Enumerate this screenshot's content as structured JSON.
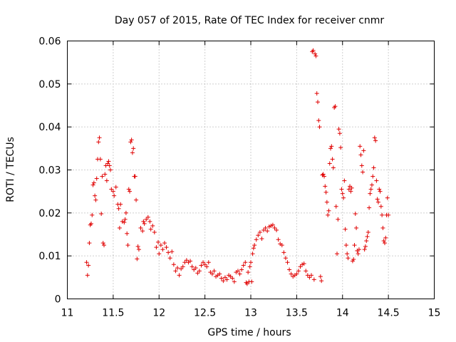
{
  "chart_data": {
    "type": "scatter",
    "title": "Day 057 of 2015, Rate Of TEC Index for receiver cnmr",
    "xlabel": "GPS time / hours",
    "ylabel": "ROTI / TECUs",
    "xlim": [
      11,
      15
    ],
    "ylim": [
      0,
      0.06
    ],
    "xticks": [
      "11",
      "11.5",
      "12",
      "12.5",
      "13",
      "13.5",
      "14",
      "14.5",
      "15"
    ],
    "yticks": [
      "0",
      "0.01",
      "0.02",
      "0.03",
      "0.04",
      "0.05",
      "0.06"
    ],
    "grid": true,
    "marker": "plus",
    "color": "#e00000",
    "series": [
      {
        "name": "ROTI",
        "points": [
          [
            11.21,
            0.0085
          ],
          [
            11.22,
            0.0055
          ],
          [
            11.23,
            0.0078
          ],
          [
            11.24,
            0.013
          ],
          [
            11.25,
            0.0172
          ],
          [
            11.26,
            0.0175
          ],
          [
            11.27,
            0.0195
          ],
          [
            11.28,
            0.0265
          ],
          [
            11.29,
            0.027
          ],
          [
            11.3,
            0.024
          ],
          [
            11.31,
            0.023
          ],
          [
            11.32,
            0.028
          ],
          [
            11.33,
            0.0325
          ],
          [
            11.34,
            0.0365
          ],
          [
            11.35,
            0.0375
          ],
          [
            11.36,
            0.0325
          ],
          [
            11.37,
            0.0198
          ],
          [
            11.38,
            0.0285
          ],
          [
            11.39,
            0.013
          ],
          [
            11.4,
            0.0125
          ],
          [
            11.41,
            0.029
          ],
          [
            11.42,
            0.031
          ],
          [
            11.43,
            0.0275
          ],
          [
            11.44,
            0.0315
          ],
          [
            11.45,
            0.032
          ],
          [
            11.46,
            0.031
          ],
          [
            11.47,
            0.03
          ],
          [
            11.48,
            0.0255
          ],
          [
            11.5,
            0.025
          ],
          [
            11.51,
            0.024
          ],
          [
            11.53,
            0.026
          ],
          [
            11.55,
            0.022
          ],
          [
            11.56,
            0.021
          ],
          [
            11.57,
            0.0165
          ],
          [
            11.58,
            0.022
          ],
          [
            11.6,
            0.018
          ],
          [
            11.62,
            0.0178
          ],
          [
            11.63,
            0.0185
          ],
          [
            11.64,
            0.02
          ],
          [
            11.65,
            0.0152
          ],
          [
            11.66,
            0.0125
          ],
          [
            11.67,
            0.0255
          ],
          [
            11.68,
            0.025
          ],
          [
            11.69,
            0.0365
          ],
          [
            11.7,
            0.037
          ],
          [
            11.71,
            0.034
          ],
          [
            11.72,
            0.035
          ],
          [
            11.73,
            0.0285
          ],
          [
            11.74,
            0.0285
          ],
          [
            11.75,
            0.023
          ],
          [
            11.76,
            0.0093
          ],
          [
            11.77,
            0.0122
          ],
          [
            11.78,
            0.0115
          ],
          [
            11.8,
            0.0165
          ],
          [
            11.82,
            0.0158
          ],
          [
            11.83,
            0.018
          ],
          [
            11.84,
            0.0175
          ],
          [
            11.86,
            0.0185
          ],
          [
            11.88,
            0.019
          ],
          [
            11.9,
            0.018
          ],
          [
            11.91,
            0.0162
          ],
          [
            11.93,
            0.017
          ],
          [
            11.95,
            0.0155
          ],
          [
            11.97,
            0.012
          ],
          [
            11.99,
            0.0132
          ],
          [
            12.0,
            0.0105
          ],
          [
            12.02,
            0.0125
          ],
          [
            12.04,
            0.0115
          ],
          [
            12.06,
            0.013
          ],
          [
            12.08,
            0.012
          ],
          [
            12.1,
            0.0108
          ],
          [
            12.12,
            0.0095
          ],
          [
            12.14,
            0.011
          ],
          [
            12.16,
            0.008
          ],
          [
            12.18,
            0.0065
          ],
          [
            12.2,
            0.0072
          ],
          [
            12.22,
            0.0055
          ],
          [
            12.24,
            0.007
          ],
          [
            12.26,
            0.0075
          ],
          [
            12.28,
            0.0085
          ],
          [
            12.3,
            0.009
          ],
          [
            12.32,
            0.0085
          ],
          [
            12.34,
            0.0088
          ],
          [
            12.36,
            0.0075
          ],
          [
            12.38,
            0.0068
          ],
          [
            12.4,
            0.0072
          ],
          [
            12.42,
            0.006
          ],
          [
            12.44,
            0.0065
          ],
          [
            12.46,
            0.0078
          ],
          [
            12.48,
            0.0085
          ],
          [
            12.5,
            0.008
          ],
          [
            12.52,
            0.0075
          ],
          [
            12.54,
            0.0085
          ],
          [
            12.56,
            0.0062
          ],
          [
            12.58,
            0.0058
          ],
          [
            12.6,
            0.0065
          ],
          [
            12.62,
            0.0052
          ],
          [
            12.64,
            0.0055
          ],
          [
            12.66,
            0.0058
          ],
          [
            12.68,
            0.0048
          ],
          [
            12.7,
            0.0042
          ],
          [
            12.72,
            0.005
          ],
          [
            12.74,
            0.0045
          ],
          [
            12.76,
            0.0055
          ],
          [
            12.78,
            0.0052
          ],
          [
            12.8,
            0.0048
          ],
          [
            12.82,
            0.004
          ],
          [
            12.84,
            0.0062
          ],
          [
            12.86,
            0.0065
          ],
          [
            12.88,
            0.0058
          ],
          [
            12.9,
            0.0068
          ],
          [
            12.92,
            0.0078
          ],
          [
            12.94,
            0.0085
          ],
          [
            12.95,
            0.0038
          ],
          [
            12.96,
            0.0035
          ],
          [
            12.97,
            0.0062
          ],
          [
            12.98,
            0.004
          ],
          [
            12.99,
            0.0075
          ],
          [
            13.0,
            0.0085
          ],
          [
            13.01,
            0.004
          ],
          [
            13.02,
            0.0105
          ],
          [
            13.03,
            0.0118
          ],
          [
            13.04,
            0.0125
          ],
          [
            13.06,
            0.0138
          ],
          [
            13.08,
            0.0148
          ],
          [
            13.1,
            0.0155
          ],
          [
            13.12,
            0.014
          ],
          [
            13.14,
            0.016
          ],
          [
            13.16,
            0.0165
          ],
          [
            13.18,
            0.0158
          ],
          [
            13.2,
            0.0168
          ],
          [
            13.22,
            0.017
          ],
          [
            13.24,
            0.0172
          ],
          [
            13.26,
            0.0165
          ],
          [
            13.28,
            0.016
          ],
          [
            13.3,
            0.0138
          ],
          [
            13.32,
            0.0128
          ],
          [
            13.34,
            0.0125
          ],
          [
            13.36,
            0.0108
          ],
          [
            13.38,
            0.0095
          ],
          [
            13.4,
            0.0085
          ],
          [
            13.42,
            0.0068
          ],
          [
            13.44,
            0.0058
          ],
          [
            13.46,
            0.0052
          ],
          [
            13.48,
            0.0055
          ],
          [
            13.5,
            0.0058
          ],
          [
            13.52,
            0.0065
          ],
          [
            13.54,
            0.0075
          ],
          [
            13.56,
            0.008
          ],
          [
            13.58,
            0.0082
          ],
          [
            13.6,
            0.0065
          ],
          [
            13.62,
            0.0055
          ],
          [
            13.64,
            0.005
          ],
          [
            13.66,
            0.0055
          ],
          [
            13.67,
            0.0575
          ],
          [
            13.68,
            0.0578
          ],
          [
            13.69,
            0.0045
          ],
          [
            13.7,
            0.057
          ],
          [
            13.71,
            0.0565
          ],
          [
            13.72,
            0.0478
          ],
          [
            13.73,
            0.0458
          ],
          [
            13.74,
            0.0415
          ],
          [
            13.75,
            0.04
          ],
          [
            13.76,
            0.0052
          ],
          [
            13.77,
            0.0042
          ],
          [
            13.78,
            0.0288
          ],
          [
            13.79,
            0.029
          ],
          [
            13.8,
            0.0285
          ],
          [
            13.81,
            0.0262
          ],
          [
            13.82,
            0.0248
          ],
          [
            13.83,
            0.0225
          ],
          [
            13.84,
            0.0195
          ],
          [
            13.85,
            0.0205
          ],
          [
            13.86,
            0.0315
          ],
          [
            13.87,
            0.035
          ],
          [
            13.88,
            0.0355
          ],
          [
            13.89,
            0.0325
          ],
          [
            13.9,
            0.0305
          ],
          [
            13.91,
            0.0445
          ],
          [
            13.92,
            0.0448
          ],
          [
            13.93,
            0.0215
          ],
          [
            13.94,
            0.0105
          ],
          [
            13.95,
            0.0185
          ],
          [
            13.96,
            0.0395
          ],
          [
            13.97,
            0.0385
          ],
          [
            13.98,
            0.0352
          ],
          [
            13.99,
            0.0255
          ],
          [
            14.0,
            0.0245
          ],
          [
            14.01,
            0.0235
          ],
          [
            14.02,
            0.0275
          ],
          [
            14.03,
            0.0162
          ],
          [
            14.04,
            0.0125
          ],
          [
            14.05,
            0.0105
          ],
          [
            14.06,
            0.0095
          ],
          [
            14.07,
            0.0255
          ],
          [
            14.08,
            0.0262
          ],
          [
            14.09,
            0.025
          ],
          [
            14.1,
            0.0258
          ],
          [
            14.11,
            0.0088
          ],
          [
            14.12,
            0.0092
          ],
          [
            14.13,
            0.0125
          ],
          [
            14.14,
            0.0198
          ],
          [
            14.15,
            0.0165
          ],
          [
            14.16,
            0.0112
          ],
          [
            14.17,
            0.0105
          ],
          [
            14.18,
            0.0115
          ],
          [
            14.19,
            0.0355
          ],
          [
            14.2,
            0.0335
          ],
          [
            14.21,
            0.031
          ],
          [
            14.22,
            0.0295
          ],
          [
            14.23,
            0.0345
          ],
          [
            14.24,
            0.0115
          ],
          [
            14.25,
            0.0122
          ],
          [
            14.26,
            0.0135
          ],
          [
            14.27,
            0.0145
          ],
          [
            14.28,
            0.0155
          ],
          [
            14.29,
            0.0212
          ],
          [
            14.3,
            0.0245
          ],
          [
            14.31,
            0.0255
          ],
          [
            14.32,
            0.0265
          ],
          [
            14.33,
            0.0285
          ],
          [
            14.34,
            0.0305
          ],
          [
            14.35,
            0.0375
          ],
          [
            14.36,
            0.0368
          ],
          [
            14.37,
            0.0275
          ],
          [
            14.38,
            0.0232
          ],
          [
            14.39,
            0.0225
          ],
          [
            14.4,
            0.0255
          ],
          [
            14.41,
            0.025
          ],
          [
            14.42,
            0.0215
          ],
          [
            14.43,
            0.0195
          ],
          [
            14.44,
            0.0165
          ],
          [
            14.45,
            0.0135
          ],
          [
            14.46,
            0.013
          ],
          [
            14.47,
            0.0142
          ],
          [
            14.48,
            0.0195
          ],
          [
            14.49,
            0.0235
          ],
          [
            14.5,
            0.0195
          ]
        ]
      }
    ]
  }
}
